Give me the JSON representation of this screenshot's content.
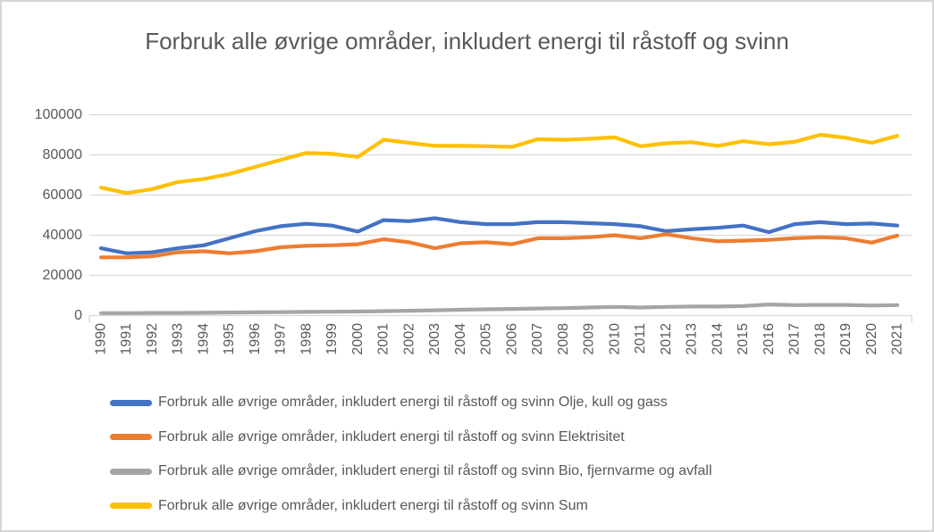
{
  "chart_data": {
    "type": "line",
    "title": "Forbruk alle øvrige områder, inkludert energi til råstoff og svinn",
    "unit_hint": "",
    "x": [
      1990,
      1991,
      1992,
      1993,
      1994,
      1995,
      1996,
      1997,
      1998,
      1999,
      2000,
      2001,
      2002,
      2003,
      2004,
      2005,
      2006,
      2007,
      2008,
      2009,
      2010,
      2011,
      2012,
      2013,
      2014,
      2015,
      2016,
      2017,
      2018,
      2019,
      2020,
      2021
    ],
    "ylim": [
      0,
      100000
    ],
    "yticks": [
      0,
      20000,
      40000,
      60000,
      80000,
      100000
    ],
    "grid": true,
    "legend_position": "bottom-left",
    "gridline_color": "#d9d9d9",
    "axis_text_color": "#595959",
    "series": [
      {
        "name": "Forbruk alle øvrige områder, inkludert energi til råstoff og svinn Olje, kull og gass",
        "color": "#4472c4",
        "values": [
          33500,
          31000,
          31500,
          33500,
          35000,
          38500,
          42000,
          44500,
          45700,
          44800,
          41800,
          47500,
          47000,
          48500,
          46500,
          45500,
          45500,
          46500,
          46500,
          46000,
          45500,
          44500,
          42000,
          43000,
          43700,
          44800,
          41500,
          45500,
          46500,
          45500,
          45800,
          44800
        ]
      },
      {
        "name": "Forbruk alle øvrige områder, inkludert energi til råstoff og svinn Elektrisitet",
        "color": "#ed7d31",
        "values": [
          29000,
          29000,
          29500,
          31500,
          32000,
          31000,
          32000,
          34000,
          34700,
          35000,
          35500,
          38000,
          36500,
          33500,
          36000,
          36500,
          35500,
          38500,
          38500,
          39000,
          40000,
          38500,
          40500,
          38500,
          37000,
          37300,
          37700,
          38500,
          39000,
          38500,
          36300,
          39800
        ]
      },
      {
        "name": "Forbruk alle øvrige områder, inkludert energi til råstoff og svinn Bio, fjernvarme og avfall",
        "color": "#a5a5a5",
        "values": [
          1200,
          1200,
          1300,
          1300,
          1400,
          1500,
          1600,
          1700,
          1800,
          1900,
          2000,
          2200,
          2400,
          2600,
          2900,
          3100,
          3300,
          3500,
          3700,
          4000,
          4300,
          4000,
          4300,
          4500,
          4500,
          4700,
          5500,
          5200,
          5300,
          5300,
          5000,
          5200
        ]
      },
      {
        "name": "Forbruk alle øvrige områder, inkludert energi til råstoff og svinn Sum",
        "color": "#ffc000",
        "values": [
          63700,
          61000,
          63000,
          66500,
          68000,
          70500,
          74000,
          77500,
          81000,
          80500,
          79000,
          87500,
          86000,
          84500,
          84500,
          84300,
          84000,
          87800,
          87500,
          88000,
          88700,
          84300,
          85800,
          86300,
          84500,
          86800,
          85300,
          86500,
          90000,
          88500,
          86000,
          89500
        ]
      }
    ]
  }
}
